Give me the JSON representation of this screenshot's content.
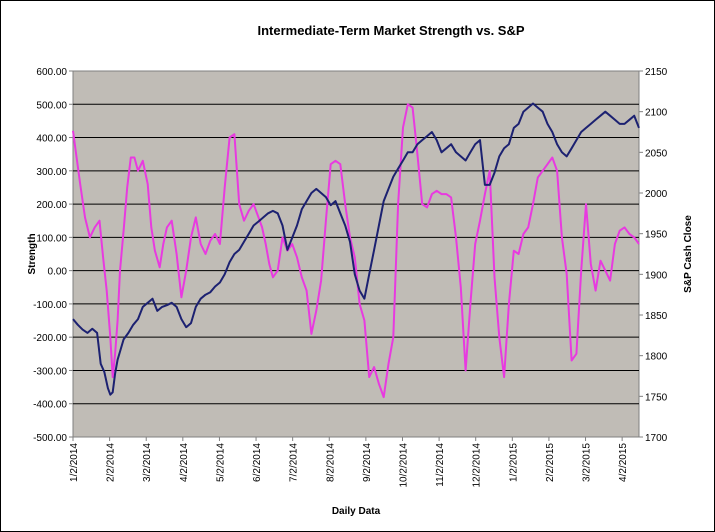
{
  "chart_data": {
    "type": "line",
    "title": "Intermediate-Term Market Strength vs. S&P",
    "xlabel": "Daily Data",
    "ylabel": "Strength",
    "y2label": "S&P Cash Close",
    "ylim": [
      -500,
      600
    ],
    "y2lim": [
      1700,
      2150
    ],
    "y_ticks": [
      "600.00",
      "500.00",
      "400.00",
      "300.00",
      "200.00",
      "100.00",
      "0.00",
      "-100.00",
      "-200.00",
      "-300.00",
      "-400.00",
      "-500.00"
    ],
    "y2_ticks": [
      "2150",
      "2100",
      "2050",
      "2000",
      "1950",
      "1900",
      "1850",
      "1800",
      "1750",
      "1700"
    ],
    "x_ticks": [
      "1/2/2014",
      "2/2/2014",
      "3/2/2014",
      "4/2/2014",
      "5/2/2014",
      "6/2/2014",
      "7/2/2014",
      "8/2/2014",
      "9/2/2014",
      "10/2/2014",
      "11/2/2014",
      "12/2/2014",
      "1/2/2015",
      "2/2/2015",
      "3/2/2015",
      "4/2/2015"
    ],
    "x_range_days": [
      0,
      470
    ],
    "grid": true,
    "plot_background": "#c0bcb6",
    "series": [
      {
        "name": "Strength",
        "axis": "left",
        "color": "#e83ae0",
        "x": [
          0,
          3,
          6,
          10,
          14,
          18,
          22,
          25,
          28,
          31,
          33,
          35,
          37,
          39,
          42,
          45,
          48,
          51,
          54,
          58,
          62,
          65,
          68,
          72,
          75,
          78,
          82,
          86,
          90,
          94,
          98,
          102,
          106,
          110,
          114,
          118,
          122,
          126,
          130,
          134,
          138,
          142,
          146,
          150,
          154,
          157,
          160,
          163,
          166,
          170,
          174,
          178,
          182,
          186,
          190,
          194,
          198,
          202,
          206,
          210,
          214,
          218,
          222,
          226,
          230,
          234,
          238,
          242,
          246,
          250,
          254,
          258,
          262,
          266,
          270,
          274,
          278,
          282,
          286,
          290,
          294,
          298,
          302,
          306,
          310,
          314,
          318,
          322,
          326,
          330,
          334,
          338,
          342,
          346,
          350,
          354,
          358,
          362,
          366,
          370,
          374,
          378,
          382,
          386,
          390,
          394,
          398,
          402,
          406,
          410,
          414,
          418,
          422,
          426,
          430,
          434,
          438,
          442,
          446,
          450,
          454,
          458,
          462,
          466,
          470
        ],
        "values": [
          420,
          340,
          260,
          160,
          100,
          130,
          150,
          40,
          -60,
          -200,
          -320,
          -250,
          -150,
          0,
          120,
          250,
          340,
          340,
          300,
          330,
          260,
          130,
          60,
          10,
          80,
          130,
          150,
          50,
          -80,
          0,
          100,
          160,
          80,
          50,
          90,
          110,
          80,
          250,
          400,
          410,
          200,
          150,
          180,
          200,
          160,
          130,
          80,
          20,
          -20,
          0,
          100,
          60,
          80,
          40,
          -20,
          -60,
          -190,
          -120,
          -30,
          150,
          320,
          330,
          320,
          200,
          100,
          40,
          -100,
          -150,
          -320,
          -290,
          -340,
          -380,
          -280,
          -200,
          200,
          430,
          500,
          490,
          350,
          200,
          190,
          230,
          240,
          230,
          230,
          220,
          100,
          -50,
          -300,
          -100,
          80,
          150,
          230,
          300,
          -20,
          -200,
          -320,
          -100,
          60,
          50,
          110,
          130,
          200,
          280,
          300,
          320,
          340,
          300,
          100,
          -10,
          -270,
          -250,
          0,
          200,
          20,
          -60,
          30,
          0,
          -30,
          80,
          120,
          130,
          110,
          100,
          80
        ]
      },
      {
        "name": "S&P Cash Close",
        "axis": "right",
        "color": "#1c2171",
        "x": [
          0,
          4,
          8,
          12,
          16,
          20,
          23,
          26,
          29,
          31,
          33,
          35,
          37,
          39,
          42,
          46,
          50,
          54,
          58,
          62,
          66,
          70,
          74,
          78,
          82,
          86,
          90,
          94,
          98,
          102,
          106,
          110,
          114,
          118,
          122,
          126,
          130,
          134,
          138,
          142,
          146,
          150,
          154,
          158,
          162,
          166,
          170,
          174,
          178,
          182,
          186,
          190,
          194,
          198,
          202,
          206,
          210,
          214,
          218,
          222,
          226,
          230,
          234,
          238,
          242,
          246,
          250,
          254,
          258,
          262,
          266,
          270,
          274,
          278,
          282,
          286,
          290,
          294,
          298,
          302,
          306,
          310,
          314,
          318,
          322,
          326,
          330,
          334,
          338,
          342,
          346,
          350,
          354,
          358,
          362,
          366,
          370,
          374,
          378,
          382,
          386,
          390,
          394,
          398,
          402,
          406,
          410,
          414,
          418,
          422,
          426,
          430,
          434,
          438,
          442,
          446,
          450,
          454,
          458,
          462,
          466,
          470
        ],
        "values": [
          1845,
          1838,
          1832,
          1828,
          1833,
          1828,
          1790,
          1780,
          1760,
          1752,
          1755,
          1778,
          1795,
          1805,
          1820,
          1828,
          1838,
          1845,
          1860,
          1865,
          1870,
          1855,
          1860,
          1862,
          1865,
          1860,
          1845,
          1835,
          1840,
          1860,
          1870,
          1875,
          1878,
          1885,
          1890,
          1900,
          1915,
          1925,
          1930,
          1940,
          1950,
          1960,
          1965,
          1970,
          1975,
          1978,
          1975,
          1960,
          1930,
          1945,
          1960,
          1980,
          1990,
          2000,
          2005,
          2000,
          1995,
          1985,
          1990,
          1975,
          1960,
          1940,
          1900,
          1880,
          1870,
          1900,
          1930,
          1960,
          1990,
          2005,
          2020,
          2030,
          2040,
          2050,
          2050,
          2060,
          2065,
          2070,
          2075,
          2065,
          2050,
          2055,
          2060,
          2050,
          2045,
          2040,
          2050,
          2060,
          2065,
          2010,
          2010,
          2025,
          2045,
          2055,
          2060,
          2080,
          2085,
          2100,
          2105,
          2110,
          2105,
          2100,
          2085,
          2075,
          2060,
          2050,
          2045,
          2055,
          2065,
          2075,
          2080,
          2085,
          2090,
          2095,
          2100,
          2095,
          2090,
          2085,
          2085,
          2090,
          2095,
          2080
        ]
      }
    ]
  }
}
